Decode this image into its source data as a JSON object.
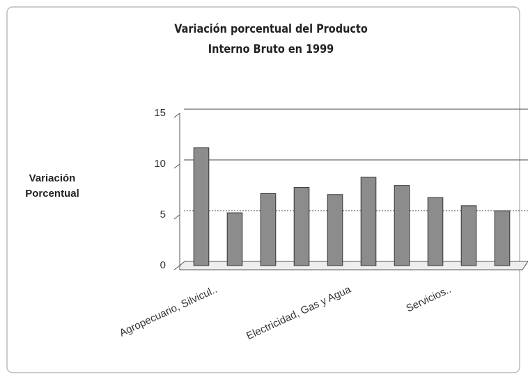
{
  "chart_data": {
    "type": "bar",
    "title": "Variación porcentual del Producto Interno Bruto en 1999",
    "ylabel": "Variación Porcentual",
    "categories": [
      "Agropecuario, Silvicul..",
      null,
      null,
      null,
      "Electricidad, Gas y Agua",
      null,
      null,
      "Servicios..",
      null,
      null
    ],
    "values": [
      11.6,
      5.2,
      7.1,
      7.7,
      7.0,
      8.7,
      7.9,
      6.7,
      5.9,
      5.4
    ],
    "color": "#8c8c8c",
    "ylim": [
      0,
      15
    ],
    "yticks": [
      0,
      5,
      10,
      15
    ],
    "grid": true
  }
}
